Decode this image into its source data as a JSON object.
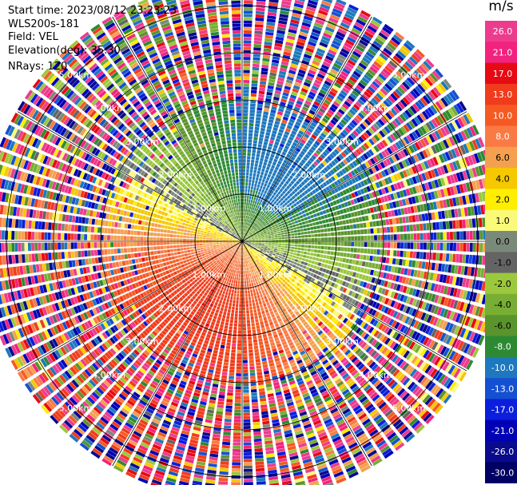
{
  "info": {
    "start_time": "Start time: 2023/08/12 23:23:23",
    "station": "WLS200s-181",
    "field": "Field: VEL",
    "elevation": "Elevation(deg): 35.30",
    "nrays": "NRays: 120"
  },
  "colorbar": {
    "unit": "m/s",
    "ticks": [
      "26.0",
      "21.0",
      "17.0",
      "13.0",
      "10.0",
      "8.0",
      "6.0",
      "4.0",
      "2.0",
      "1.0",
      "0.0",
      "-1.0",
      "-2.0",
      "-4.0",
      "-6.0",
      "-8.0",
      "-10.0",
      "-13.0",
      "-17.0",
      "-21.0",
      "-26.0",
      "-30.0"
    ],
    "colors": [
      "#ec3c8e",
      "#f2237e",
      "#e60a14",
      "#f03c1c",
      "#f55a23",
      "#fa7a46",
      "#f5a04e",
      "#f5c800",
      "#ffee00",
      "#fafa7a",
      "#7a8a7a",
      "#646464",
      "#9bc83c",
      "#78ae34",
      "#5a942c",
      "#2d8a32",
      "#1e78be",
      "#1450d2",
      "#0a1edc",
      "#0000b4",
      "#0a0a8c",
      "#000064"
    ]
  },
  "chart_data": {
    "type": "ppi",
    "field": "VEL",
    "units": "m/s",
    "rings_km": [
      1,
      2,
      3,
      4,
      5
    ],
    "ring_labels": [
      "1.00km",
      "2.00km",
      "3.00km",
      "4.00km",
      "5.00km"
    ],
    "nrays": 120,
    "elevation_deg": 35.3,
    "vmin": -30,
    "vmax": 30,
    "pattern": {
      "direction_toward_deg": 210,
      "peak_speed": 12,
      "valid_range_km": 3.0,
      "noisy_range_km": 5.5
    }
  }
}
